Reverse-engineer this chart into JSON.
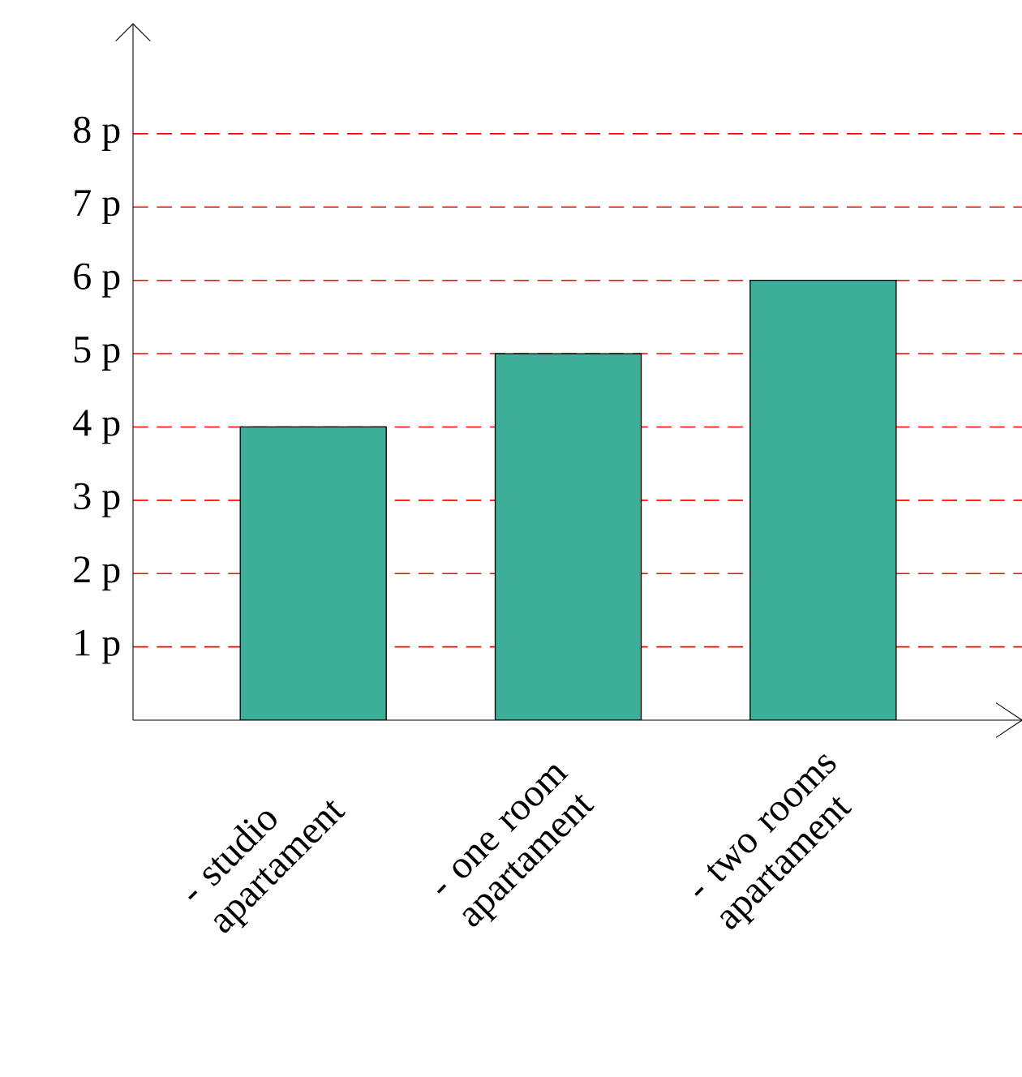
{
  "chart_data": {
    "type": "bar",
    "categories": [
      "- studio apartament",
      "- one room apartament",
      "- two rooms apartament"
    ],
    "values": [
      4,
      5,
      6
    ],
    "color": "#3dae98",
    "ylim": [
      0,
      9.5
    ],
    "yticks": [
      {
        "value": 1,
        "label": "1 p"
      },
      {
        "value": 2,
        "label": "2 p"
      },
      {
        "value": 3,
        "label": "3 p"
      },
      {
        "value": 4,
        "label": "4 p"
      },
      {
        "value": 5,
        "label": "5 p"
      },
      {
        "value": 6,
        "label": "6 p"
      },
      {
        "value": 7,
        "label": "7 p"
      },
      {
        "value": 8,
        "label": "8 p"
      }
    ],
    "grid": "y"
  }
}
